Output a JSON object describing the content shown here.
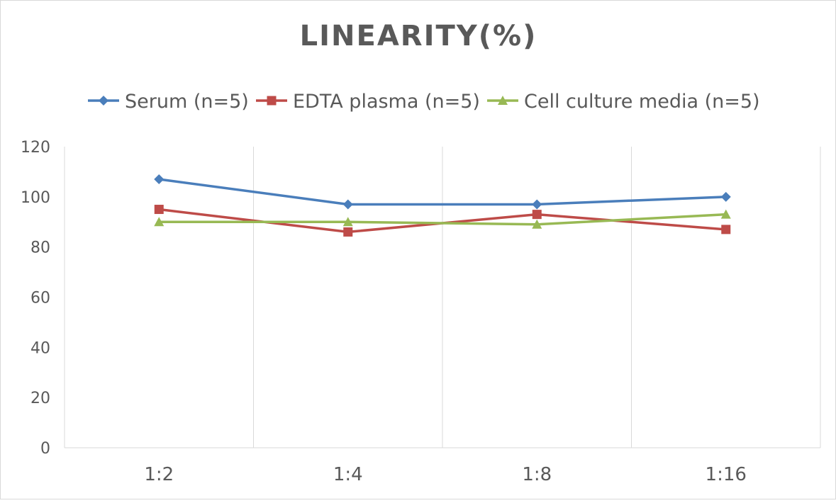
{
  "chart_data": {
    "type": "line",
    "title": "LINEARITY(%)",
    "categories": [
      "1:2",
      "1:4",
      "1:8",
      "1:16"
    ],
    "ylim": [
      0,
      120
    ],
    "yticks": [
      0,
      20,
      40,
      60,
      80,
      100,
      120
    ],
    "grid": "vertical",
    "legend": "top",
    "series": [
      {
        "name": "Serum (n=5)",
        "color": "#4a7ebb",
        "marker": "diamond",
        "values": [
          107,
          97,
          97,
          100
        ]
      },
      {
        "name": "EDTA plasma (n=5)",
        "color": "#be4b48",
        "marker": "square",
        "values": [
          95,
          86,
          93,
          87
        ]
      },
      {
        "name": "Cell culture media (n=5)",
        "color": "#98b954",
        "marker": "triangle",
        "values": [
          90,
          90,
          89,
          93
        ]
      }
    ]
  }
}
